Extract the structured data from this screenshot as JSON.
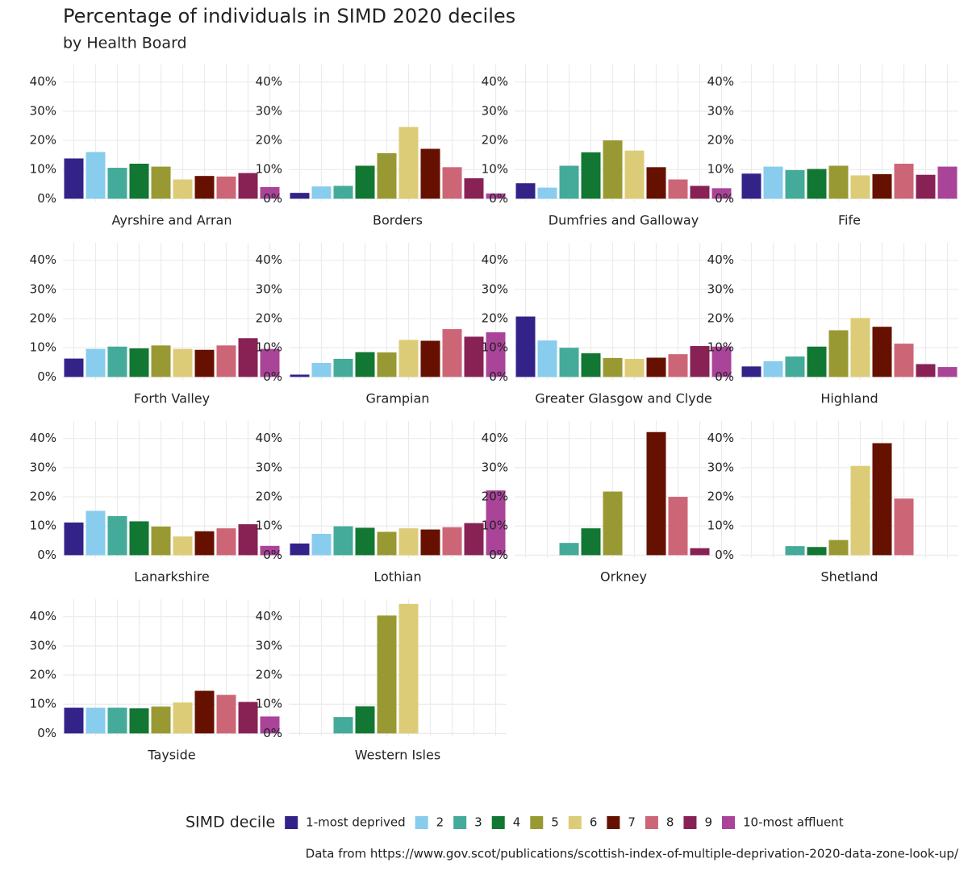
{
  "chart_data": {
    "type": "bar",
    "title": "Percentage of individuals in SIMD 2020 deciles",
    "subtitle": "by Health Board",
    "legend_title": "SIMD decile",
    "legend": "bottom",
    "caption": "Data from https://www.gov.scot/publications/scottish-index-of-multiple-deprivation-2020-data-zone-look-up/",
    "categories": [
      "1-most deprived",
      "2",
      "3",
      "4",
      "5",
      "6",
      "7",
      "8",
      "9",
      "10-most affluent"
    ],
    "colors": [
      "#332288",
      "#88ccee",
      "#44aa99",
      "#117733",
      "#999933",
      "#ddcc77",
      "#661100",
      "#cc6677",
      "#882255",
      "#aa4499"
    ],
    "ylim": [
      -1,
      46
    ],
    "yticks": [
      {
        "value": 0,
        "label": "0%"
      },
      {
        "value": 10,
        "label": "10%"
      },
      {
        "value": 20,
        "label": "20%"
      },
      {
        "value": 30,
        "label": "30%"
      },
      {
        "value": 40,
        "label": "40%"
      }
    ],
    "grid": true,
    "facets": [
      {
        "title": "Ayrshire and Arran",
        "values": [
          13.8,
          16,
          10.6,
          12,
          11,
          6.6,
          7.8,
          7.6,
          8.8,
          4
        ]
      },
      {
        "title": "Borders",
        "values": [
          2,
          4.2,
          4.4,
          11.3,
          15.6,
          24.6,
          17.1,
          10.8,
          7,
          1.8
        ]
      },
      {
        "title": "Dumfries and Galloway",
        "values": [
          5.3,
          3.8,
          11.3,
          15.9,
          20,
          16.5,
          10.8,
          6.6,
          4.4,
          3.6
        ]
      },
      {
        "title": "Fife",
        "values": [
          8.6,
          11,
          9.8,
          10.2,
          11.3,
          8,
          8.4,
          12,
          8.2,
          11
        ]
      },
      {
        "title": "Forth Valley",
        "values": [
          6.3,
          9.6,
          10.4,
          9.8,
          10.8,
          9.6,
          9.3,
          10.8,
          13.3,
          9.6
        ]
      },
      {
        "title": "Grampian",
        "values": [
          0.8,
          4.8,
          6.2,
          8.5,
          8.4,
          12.7,
          12.4,
          16.4,
          13.8,
          15.3
        ]
      },
      {
        "title": "Greater Glasgow and Clyde",
        "values": [
          20.7,
          12.5,
          10,
          8.1,
          6.5,
          6.2,
          6.6,
          7.8,
          10.6,
          10.4
        ]
      },
      {
        "title": "Highland",
        "values": [
          3.6,
          5.4,
          7,
          10.4,
          16,
          20.2,
          17.2,
          11.4,
          4.4,
          3.4
        ]
      },
      {
        "title": "Lanarkshire",
        "values": [
          11.2,
          15.2,
          13.4,
          11.6,
          9.8,
          6.4,
          8.2,
          9.2,
          10.6,
          3.2
        ]
      },
      {
        "title": "Lothian",
        "values": [
          4,
          7.3,
          9.9,
          9.4,
          8,
          9.2,
          8.8,
          9.6,
          11,
          22.2
        ]
      },
      {
        "title": "Orkney",
        "values": [
          0,
          0,
          4.2,
          9.2,
          21.8,
          0,
          42.2,
          20,
          2.4,
          0
        ]
      },
      {
        "title": "Shetland",
        "values": [
          0,
          0,
          3.1,
          2.8,
          5.2,
          30.6,
          38.4,
          19.4,
          0,
          0
        ]
      },
      {
        "title": "Tayside",
        "values": [
          8.8,
          8.8,
          8.8,
          8.6,
          9.2,
          10.6,
          14.6,
          13.2,
          10.8,
          5.8
        ]
      },
      {
        "title": "Western Isles",
        "values": [
          0,
          0,
          5.6,
          9.3,
          40.4,
          44.4,
          0,
          0,
          0,
          0
        ]
      }
    ]
  }
}
